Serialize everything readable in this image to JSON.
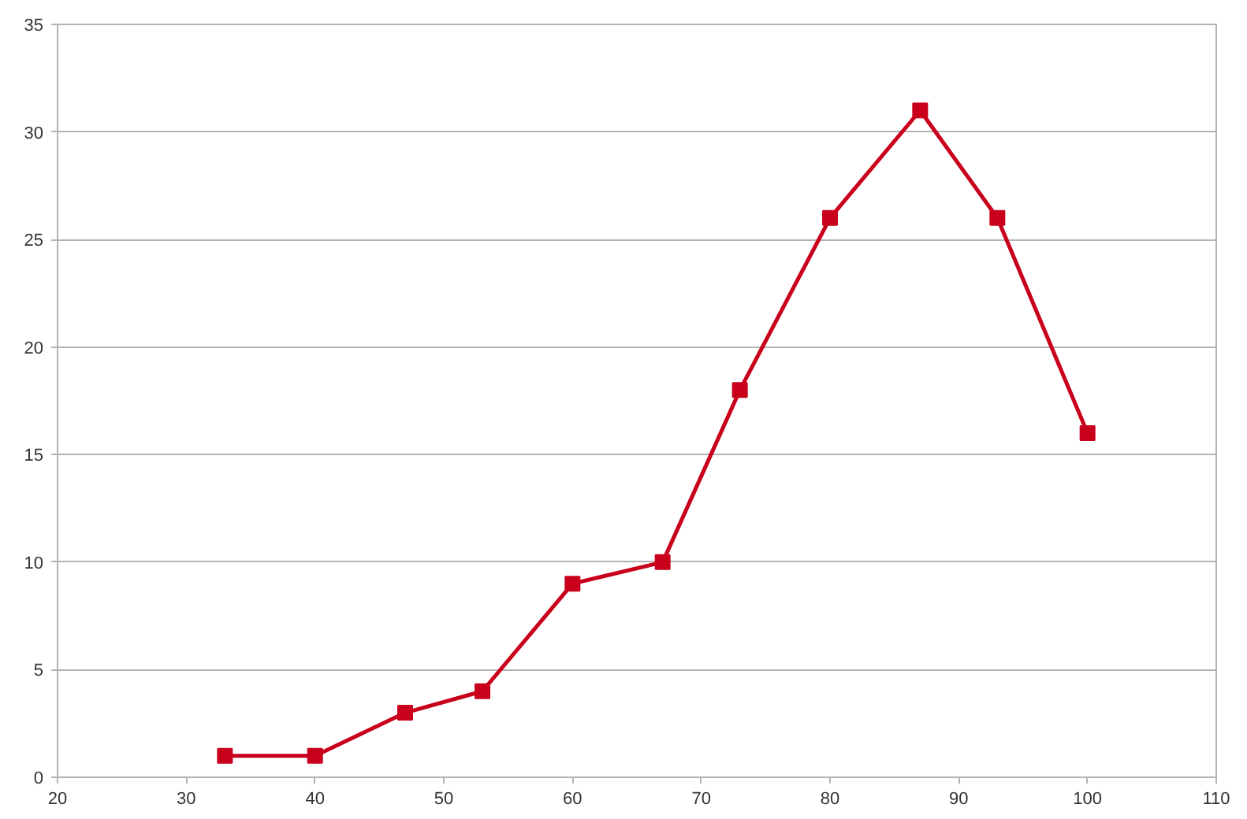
{
  "chart_data": {
    "type": "line",
    "x": [
      33,
      40,
      47,
      53,
      60,
      67,
      73,
      80,
      87,
      93,
      100
    ],
    "series": [
      {
        "color": "#c9001b",
        "values": [
          1,
          1,
          3,
          4,
          9,
          10,
          18,
          26,
          31,
          26,
          16
        ]
      }
    ],
    "xlim": [
      20,
      110
    ],
    "xticks": [
      20,
      30,
      40,
      50,
      60,
      70,
      80,
      90,
      100,
      110
    ],
    "ylim": [
      0,
      35
    ],
    "yticks": [
      0,
      5,
      10,
      15,
      20,
      25,
      30,
      35
    ],
    "grid": "y",
    "marker": "square",
    "line_style": "solid"
  }
}
